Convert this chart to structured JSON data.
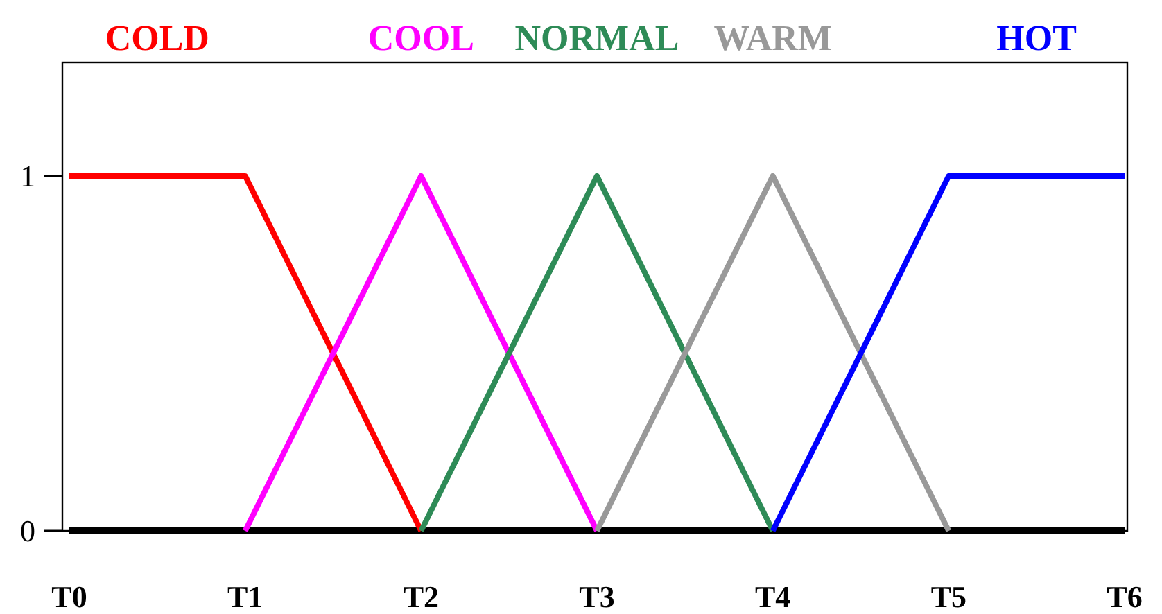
{
  "chart_data": {
    "type": "line",
    "categories": [
      "T0",
      "T1",
      "T2",
      "T3",
      "T4",
      "T5",
      "T6"
    ],
    "ylim": [
      0,
      1.32
    ],
    "yticks": [
      0,
      1
    ],
    "grid": false,
    "legend": "top",
    "marker": "none",
    "line_style": "solid",
    "series": [
      {
        "name": "COLD",
        "color": "#ff0000",
        "values": [
          1,
          1,
          0,
          null,
          null,
          null,
          null
        ]
      },
      {
        "name": "COOL",
        "color": "#ff00ff",
        "values": [
          null,
          0,
          1,
          0,
          null,
          null,
          null
        ]
      },
      {
        "name": "NORMAL",
        "color": "#2e8b57",
        "values": [
          null,
          null,
          0,
          1,
          0,
          null,
          null
        ]
      },
      {
        "name": "WARM",
        "color": "#999999",
        "values": [
          null,
          null,
          null,
          0,
          1,
          0,
          null
        ]
      },
      {
        "name": "HOT",
        "color": "#0000ff",
        "values": [
          null,
          null,
          null,
          null,
          0,
          1,
          1
        ]
      }
    ]
  }
}
